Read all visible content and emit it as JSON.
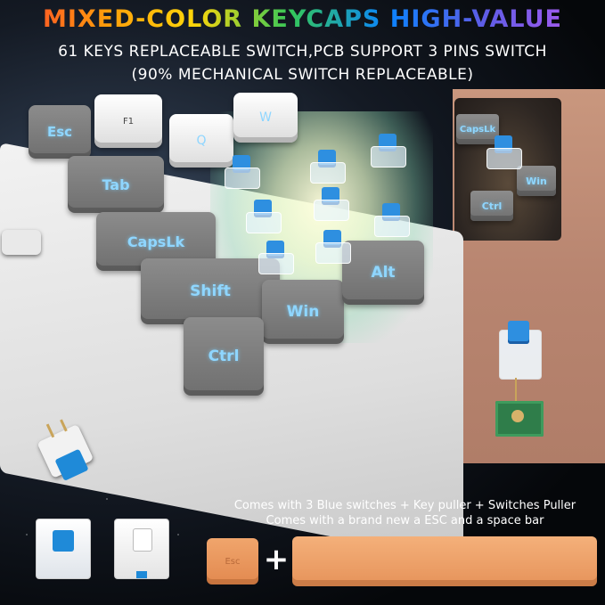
{
  "header": {
    "title": "MIXED-COLOR KEYCAPS HIGH-VALUE",
    "subtitle_line1": "61 KEYS REPLACEABLE SWITCH,PCB SUPPORT 3 PINS SWITCH",
    "subtitle_line2": "(90% MECHANICAL SWITCH REPLACEABLE)"
  },
  "keys": {
    "esc": "Esc",
    "f1": "F1",
    "q": "Q",
    "w": "W",
    "tab": "Tab",
    "capslock": "CapsLk",
    "shift": "Shift",
    "win": "Win",
    "alt": "Alt",
    "ctrl": "Ctrl"
  },
  "inset_keys": {
    "capslock": "CapsLk",
    "win": "Win",
    "ctrl": "Ctrl"
  },
  "accessories": {
    "note_line1": "Comes with 3 Blue switches + Key puller + Switches Puller",
    "note_line2": "Comes with a brand new a ESC and a space bar",
    "esc_keycap_label": "Esc",
    "plus_sign": "+"
  },
  "colors": {
    "keycap_gray": "#7a7a7a",
    "keycap_white": "#f0f0f0",
    "legend_blue": "#8fd6ff",
    "switch_blue": "#2e8fe0",
    "accent_orange": "#e6935a"
  }
}
